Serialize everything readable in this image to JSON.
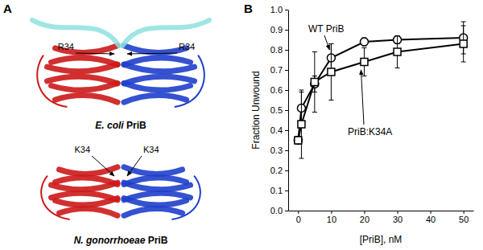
{
  "panel_a": {
    "label": "A",
    "structures": [
      {
        "species": "E. coli",
        "protein": "PriB",
        "residue_labels": [
          "R34",
          "R34"
        ]
      },
      {
        "species": "N. gonorrhoeae",
        "protein": "PriB",
        "residue_labels": [
          "K34",
          "K34"
        ]
      }
    ]
  },
  "chart_data": {
    "type": "line",
    "panel_label": "B",
    "x_label": "[PriB], nM",
    "y_label": "Fraction Unwound",
    "x": [
      0,
      1,
      5,
      10,
      20,
      30,
      50
    ],
    "series": [
      {
        "name": "WT PriB",
        "color": "#000000",
        "marker": "circle",
        "values": [
          0.35,
          0.51,
          0.63,
          0.76,
          0.84,
          0.85,
          0.86
        ],
        "errors": [
          0.02,
          0.08,
          0.04,
          0.07,
          0.02,
          0.02,
          0.08
        ]
      },
      {
        "name": "PriB:K34A",
        "color": "#000000",
        "marker": "square",
        "values": [
          0.35,
          0.43,
          0.64,
          0.69,
          0.74,
          0.79,
          0.83
        ],
        "errors": [
          0.02,
          0.17,
          0.15,
          0.14,
          0.07,
          0.08,
          0.09
        ]
      }
    ],
    "xlim": [
      -3,
      53
    ],
    "xticks": [
      0,
      10,
      20,
      30,
      40,
      50
    ],
    "ylim": [
      0,
      1.0
    ],
    "yticks": [
      {
        "value": 0,
        "label": "0.0"
      },
      {
        "value": 0.1,
        "label": "0.1"
      },
      {
        "value": 0.2,
        "label": "0.2"
      },
      {
        "value": 0.3,
        "label": "0.3"
      },
      {
        "value": 0.4,
        "label": "0.4"
      },
      {
        "value": 0.5,
        "label": "0.5"
      },
      {
        "value": 0.6,
        "label": "0.6"
      },
      {
        "value": 0.7,
        "label": "0.7"
      },
      {
        "value": 0.8,
        "label": "0.8"
      },
      {
        "value": 0.9,
        "label": "0.9"
      },
      {
        "value": 1.0,
        "label": "1.0"
      }
    ],
    "grid": false
  }
}
